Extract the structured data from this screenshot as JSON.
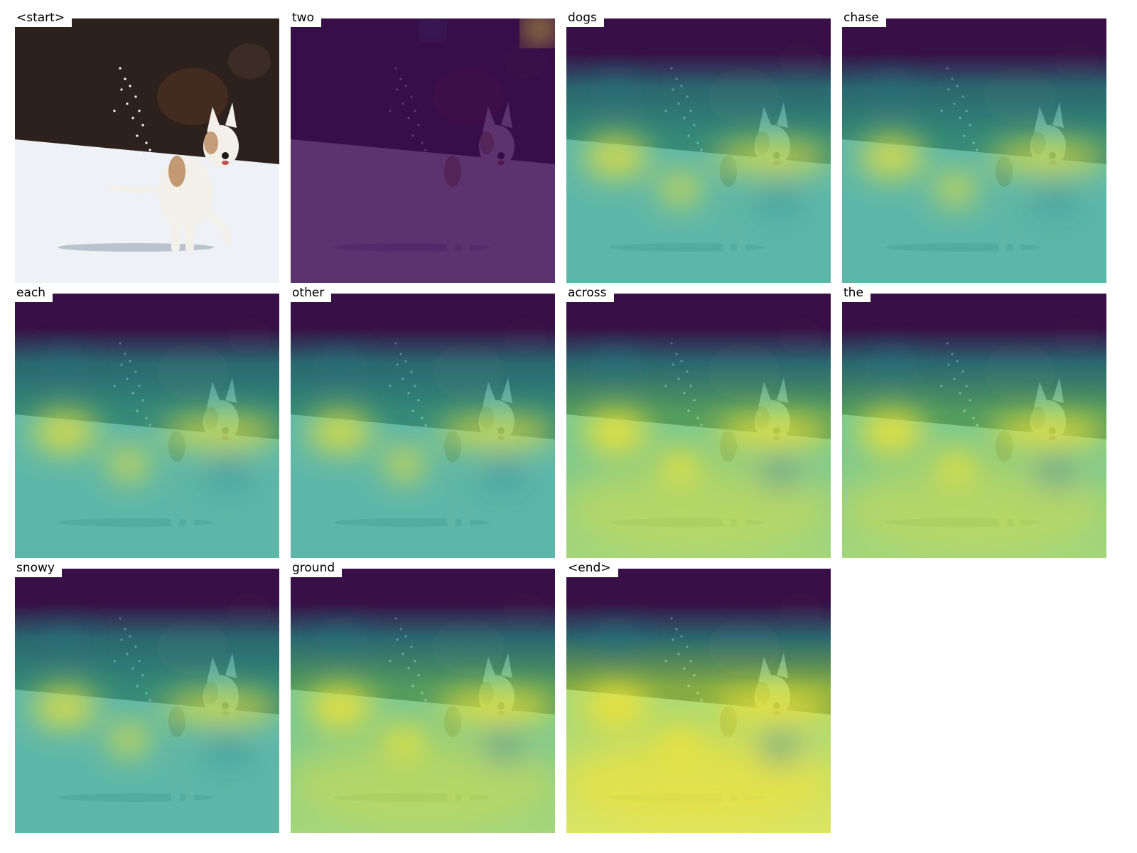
{
  "figure": {
    "panels": [
      {
        "word": "<start>",
        "heat": "none"
      },
      {
        "word": "two",
        "heat": "top-right-spot"
      },
      {
        "word": "dogs",
        "heat": "medium"
      },
      {
        "word": "chase",
        "heat": "medium"
      },
      {
        "word": "each",
        "heat": "medium"
      },
      {
        "word": "other",
        "heat": "medium"
      },
      {
        "word": "across",
        "heat": "strong"
      },
      {
        "word": "the",
        "heat": "strong"
      },
      {
        "word": "snowy",
        "heat": "medium"
      },
      {
        "word": "ground",
        "heat": "strong"
      },
      {
        "word": "<end>",
        "heat": "strongest"
      }
    ],
    "colors": {
      "viridis_dark": "#3b0a52",
      "viridis_teal": "#35a693",
      "viridis_green": "#8fce5a",
      "viridis_yellow": "#f2e335",
      "snow": "#eef1f5",
      "forest": "#2c211c",
      "dog": "#f3efe9",
      "dog_patch": "#b9895c"
    }
  }
}
